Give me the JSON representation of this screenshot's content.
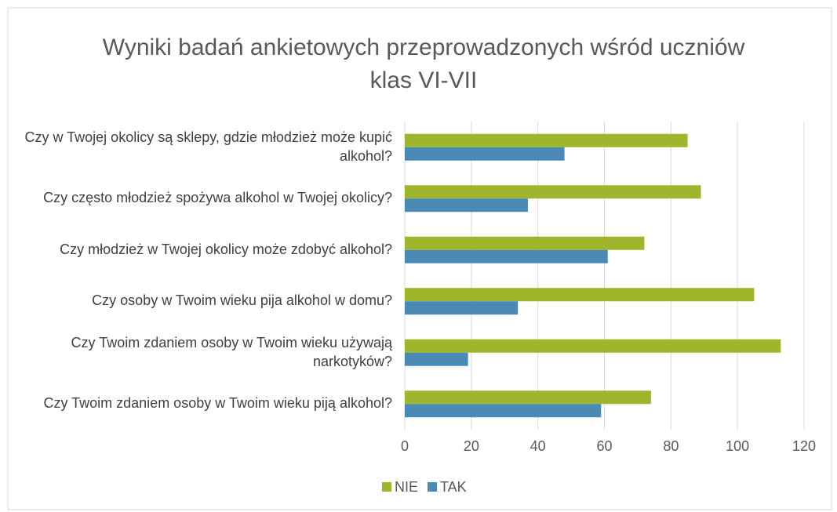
{
  "chart_data": {
    "type": "hbar",
    "title": "Wyniki badań ankietowych przeprowadzonych wśród uczniów klas VI-VII",
    "categories": [
      "Czy w Twojej okolicy są sklepy, gdzie młodzież może kupić alkohol?",
      "Czy często młodzież spożywa alkohol w Twojej okolicy?",
      "Czy młodzież w Twojej okolicy może zdobyć alkohol?",
      "Czy osoby w Twoim wieku pija alkohol w domu?",
      "Czy Twoim zdaniem osoby w Twoim wieku używają narkotyków?",
      "Czy Twoim zdaniem osoby w Twoim wieku piją alkohol?"
    ],
    "series": [
      {
        "name": "NIE",
        "color": "#9fb52b",
        "values": [
          85,
          89,
          72,
          105,
          113,
          74
        ]
      },
      {
        "name": "TAK",
        "color": "#4a8ab5",
        "values": [
          48,
          37,
          61,
          34,
          19,
          59
        ]
      }
    ],
    "xlim": [
      0,
      120
    ],
    "xticks": [
      0,
      20,
      40,
      60,
      80,
      100,
      120
    ],
    "grid": true,
    "legend": "bottom"
  }
}
